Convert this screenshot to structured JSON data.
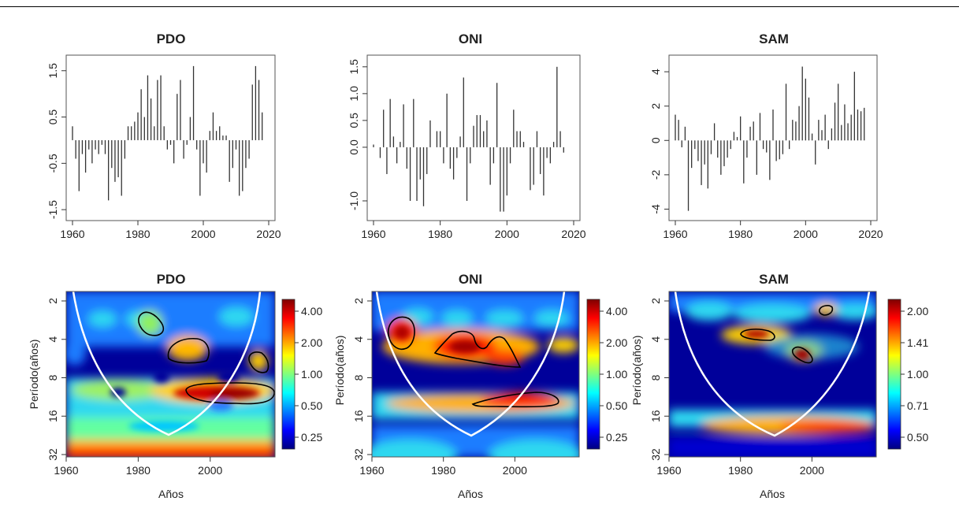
{
  "chart_data": [
    {
      "type": "bar",
      "title": "PDO",
      "xlim": [
        1960,
        2020
      ],
      "ylim": [
        -1.6,
        1.7
      ],
      "x_ticks": [
        "1960",
        "1980",
        "2000",
        "2020"
      ],
      "y_ticks": [
        "1.5",
        "0.5",
        "-0.5",
        "-1.5"
      ],
      "x": [
        1960,
        1961,
        1962,
        1963,
        1964,
        1965,
        1966,
        1967,
        1968,
        1969,
        1970,
        1971,
        1972,
        1973,
        1974,
        1975,
        1976,
        1977,
        1978,
        1979,
        1980,
        1981,
        1982,
        1983,
        1984,
        1985,
        1986,
        1987,
        1988,
        1989,
        1990,
        1991,
        1992,
        1993,
        1994,
        1995,
        1996,
        1997,
        1998,
        1999,
        2000,
        2001,
        2002,
        2003,
        2004,
        2005,
        2006,
        2007,
        2008,
        2009,
        2010,
        2011,
        2012,
        2013,
        2014,
        2015,
        2016,
        2017,
        2018
      ],
      "values": [
        0.3,
        -0.4,
        -1.1,
        -0.3,
        -0.7,
        -0.2,
        -0.5,
        -0.2,
        -0.3,
        -0.1,
        -0.3,
        -1.3,
        -0.6,
        -0.9,
        -0.8,
        -1.2,
        -0.4,
        0.3,
        0.3,
        0.4,
        0.6,
        1.1,
        0.5,
        1.4,
        0.9,
        0.3,
        1.3,
        1.4,
        0.3,
        -0.2,
        -0.1,
        -0.5,
        1.0,
        1.3,
        -0.4,
        -0.1,
        0.5,
        1.6,
        -0.2,
        -1.2,
        -0.5,
        -0.7,
        0.2,
        0.6,
        0.2,
        0.3,
        0.1,
        0.1,
        -0.9,
        -0.6,
        -0.2,
        -1.2,
        -1.1,
        -0.6,
        -0.4,
        1.2,
        1.6,
        1.3,
        0.6
      ]
    },
    {
      "type": "bar",
      "title": "ONI",
      "xlim": [
        1960,
        2020
      ],
      "ylim": [
        -1.25,
        1.6
      ],
      "x_ticks": [
        "1960",
        "1980",
        "2000",
        "2020"
      ],
      "y_ticks": [
        "1.5",
        "1.0",
        "0.5",
        "0.0",
        "-1.0"
      ],
      "x": [
        1960,
        1961,
        1962,
        1963,
        1964,
        1965,
        1966,
        1967,
        1968,
        1969,
        1970,
        1971,
        1972,
        1973,
        1974,
        1975,
        1976,
        1977,
        1978,
        1979,
        1980,
        1981,
        1982,
        1983,
        1984,
        1985,
        1986,
        1987,
        1988,
        1989,
        1990,
        1991,
        1992,
        1993,
        1994,
        1995,
        1996,
        1997,
        1998,
        1999,
        2000,
        2001,
        2002,
        2003,
        2004,
        2005,
        2006,
        2007,
        2008,
        2009,
        2010,
        2011,
        2012,
        2013,
        2014,
        2015,
        2016,
        2017,
        2018
      ],
      "values": [
        0.05,
        0.0,
        -0.2,
        0.7,
        -0.5,
        0.9,
        0.2,
        -0.3,
        0.1,
        0.8,
        -0.4,
        -1.0,
        0.9,
        -1.0,
        -0.6,
        -1.1,
        -0.5,
        0.5,
        0.0,
        0.3,
        0.3,
        -0.3,
        1.0,
        -0.4,
        -0.6,
        -0.2,
        0.2,
        1.3,
        -1.0,
        -0.3,
        0.4,
        0.6,
        0.6,
        0.3,
        0.5,
        -0.7,
        -0.3,
        1.2,
        -1.2,
        -1.2,
        -0.9,
        -0.3,
        0.7,
        0.3,
        0.3,
        0.1,
        0.0,
        -0.8,
        -0.7,
        0.3,
        -0.5,
        -0.9,
        -0.2,
        -0.3,
        0.1,
        1.5,
        0.3,
        -0.1,
        0.0
      ]
    },
    {
      "type": "bar",
      "title": "SAM",
      "xlim": [
        1960,
        2020
      ],
      "ylim": [
        -4.3,
        4.6
      ],
      "x_ticks": [
        "1960",
        "1980",
        "2000",
        "2020"
      ],
      "y_ticks": [
        "4",
        "2",
        "0",
        "-2",
        "-4"
      ],
      "x": [
        1960,
        1961,
        1962,
        1963,
        1964,
        1965,
        1966,
        1967,
        1968,
        1969,
        1970,
        1971,
        1972,
        1973,
        1974,
        1975,
        1976,
        1977,
        1978,
        1979,
        1980,
        1981,
        1982,
        1983,
        1984,
        1985,
        1986,
        1987,
        1988,
        1989,
        1990,
        1991,
        1992,
        1993,
        1994,
        1995,
        1996,
        1997,
        1998,
        1999,
        2000,
        2001,
        2002,
        2003,
        2004,
        2005,
        2006,
        2007,
        2008,
        2009,
        2010,
        2011,
        2012,
        2013,
        2014,
        2015,
        2016,
        2017,
        2018
      ],
      "values": [
        1.5,
        1.2,
        -0.4,
        0.8,
        -4.1,
        -1.6,
        -0.5,
        -1.2,
        -2.6,
        -1.4,
        -2.8,
        -0.8,
        1.0,
        -1.0,
        -2.0,
        -1.5,
        -1.0,
        -0.5,
        0.5,
        0.2,
        1.4,
        -2.5,
        -1.0,
        0.8,
        1.1,
        -2.0,
        1.6,
        -0.5,
        -0.7,
        -2.3,
        1.8,
        -1.2,
        -1.1,
        -0.8,
        3.3,
        -0.5,
        1.2,
        1.1,
        2.0,
        4.3,
        3.6,
        2.5,
        0.4,
        -1.4,
        1.2,
        0.6,
        1.5,
        -0.5,
        0.7,
        2.2,
        3.3,
        0.9,
        2.1,
        1.0,
        1.5,
        4.0,
        1.8,
        1.7,
        1.9
      ]
    },
    {
      "type": "heatmap",
      "title": "PDO",
      "xlabel": "Años",
      "ylabel": "Período(años)",
      "xlim": [
        1960,
        2018
      ],
      "y_scale": "log2",
      "y_range": [
        2,
        32
      ],
      "x_ticks": [
        "1960",
        "1980",
        "2000"
      ],
      "y_ticks": [
        "2",
        "4",
        "8",
        "16",
        "32"
      ],
      "colorbar_ticks": [
        "4.00",
        "2.00",
        "1.00",
        "0.50",
        "0.25"
      ]
    },
    {
      "type": "heatmap",
      "title": "ONI",
      "xlabel": "Años",
      "ylabel": "Período(años)",
      "xlim": [
        1960,
        2018
      ],
      "y_scale": "log2",
      "y_range": [
        2,
        32
      ],
      "x_ticks": [
        "1960",
        "1980",
        "2000"
      ],
      "y_ticks": [
        "2",
        "4",
        "8",
        "16",
        "32"
      ],
      "colorbar_ticks": [
        "4.00",
        "2.00",
        "1.00",
        "0.50",
        "0.25"
      ]
    },
    {
      "type": "heatmap",
      "title": "SAM",
      "xlabel": "Años",
      "ylabel": "Período(años)",
      "xlim": [
        1960,
        2018
      ],
      "y_scale": "log2",
      "y_range": [
        2,
        32
      ],
      "x_ticks": [
        "1960",
        "1980",
        "2000"
      ],
      "y_ticks": [
        "2",
        "4",
        "8",
        "16",
        "32"
      ],
      "colorbar_ticks": [
        "2.00",
        "1.41",
        "1.00",
        "0.71",
        "0.50"
      ]
    }
  ]
}
